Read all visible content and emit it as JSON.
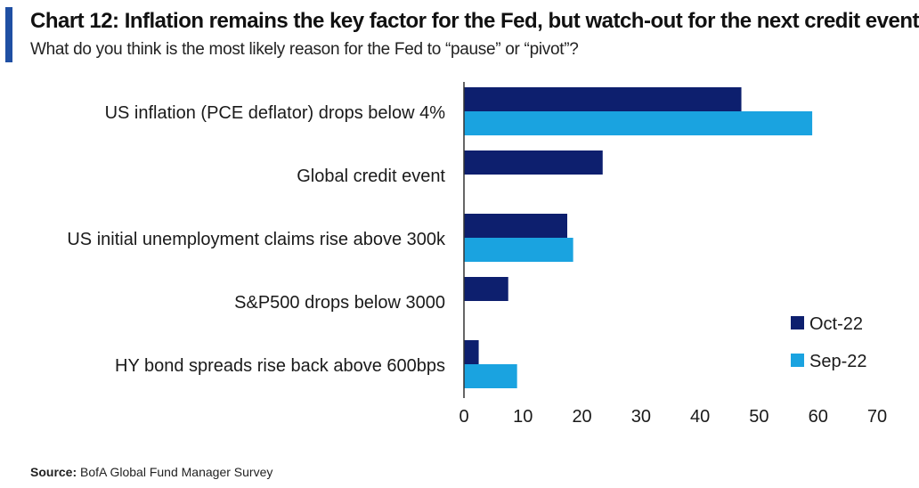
{
  "header": {
    "title": "Chart 12: Inflation remains the key factor for the Fed, but watch-out for the next credit event",
    "subtitle": "What do you think is the most likely reason for the Fed to “pause” or “pivot”?"
  },
  "footer": {
    "source_label": "Source:",
    "source_text": "BofA Global Fund Manager Survey"
  },
  "colors": {
    "accent": "#1f4fa3",
    "oct": "#0d1f6e",
    "sep": "#1aa3e0"
  },
  "chart_data": {
    "type": "bar",
    "orientation": "horizontal",
    "categories": [
      "US inflation (PCE deflator) drops below 4%",
      "Global credit event",
      "US initial unemployment claims rise above 300k",
      "S&P500 drops below 3000",
      "HY bond spreads rise back above 600bps"
    ],
    "series": [
      {
        "name": "Oct-22",
        "color": "#0d1f6e",
        "values": [
          47,
          23.5,
          17.5,
          7.5,
          2.5
        ]
      },
      {
        "name": "Sep-22",
        "color": "#1aa3e0",
        "values": [
          59,
          null,
          18.5,
          null,
          9
        ]
      }
    ],
    "xlim": [
      0,
      70
    ],
    "xticks": [
      0,
      10,
      20,
      30,
      40,
      50,
      60,
      70
    ],
    "grid": false,
    "legend": "bottom-right"
  }
}
